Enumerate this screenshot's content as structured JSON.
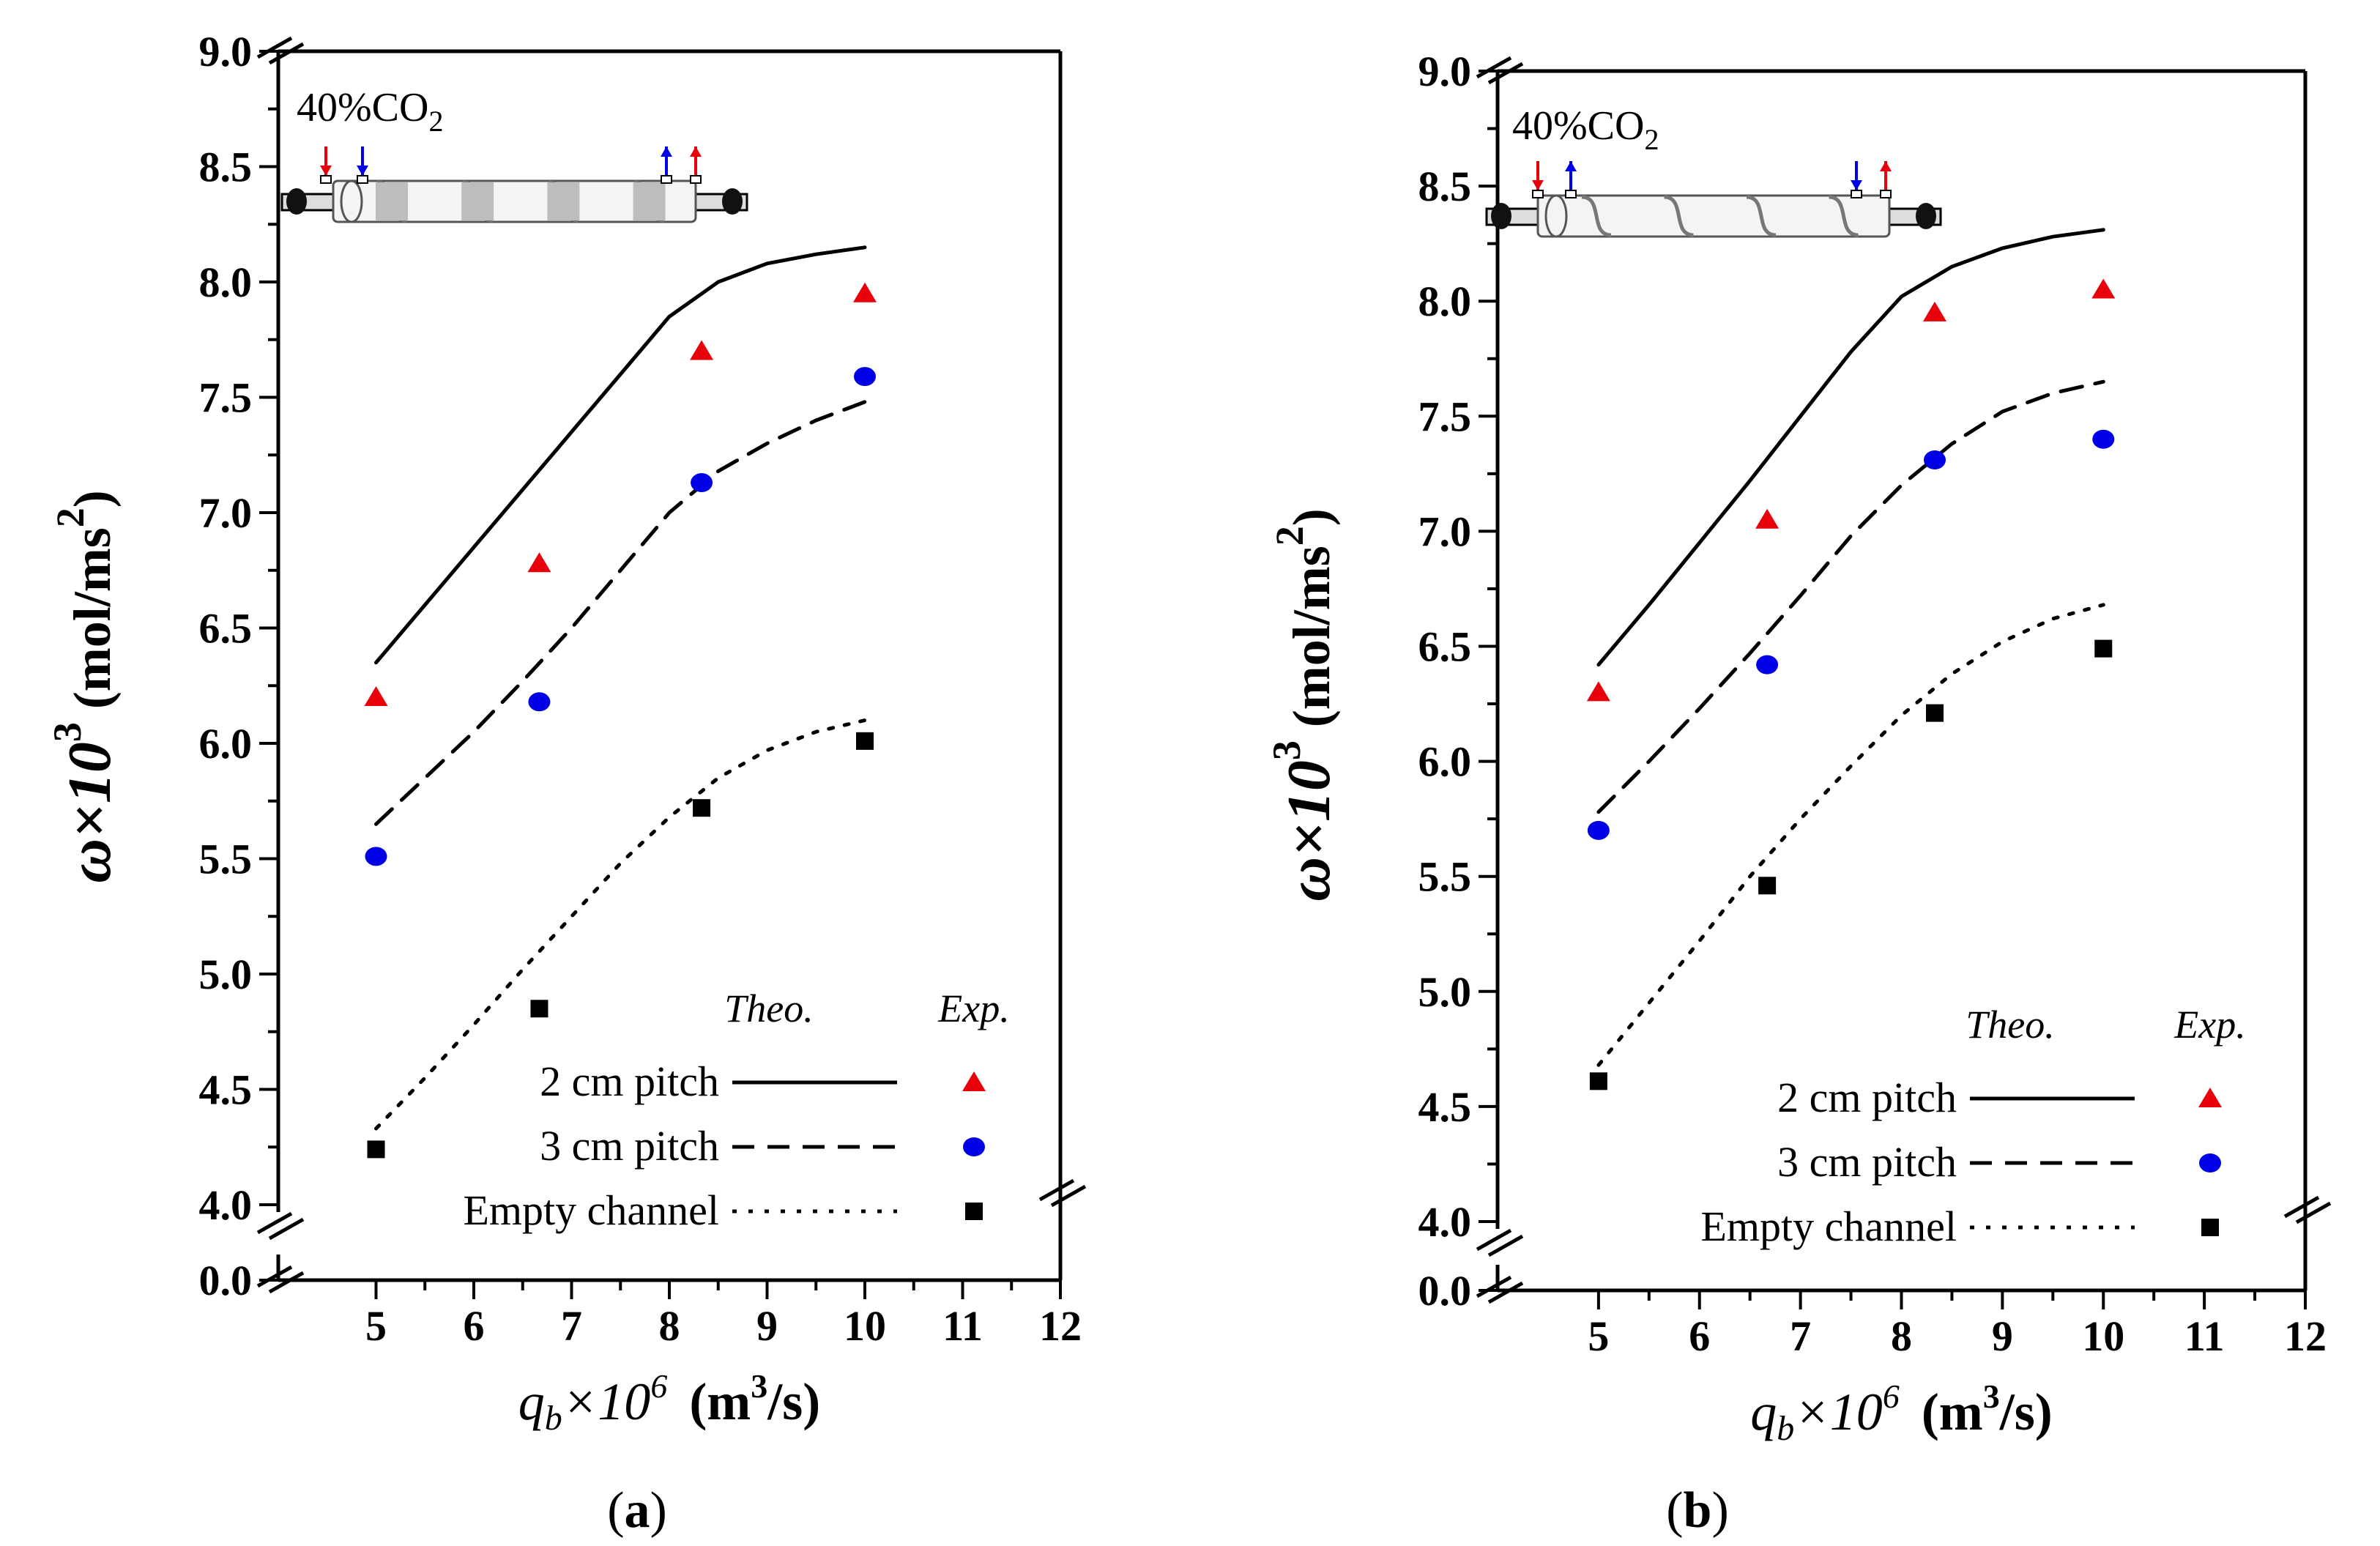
{
  "chart_data": [
    {
      "type": "line",
      "panel_label": "a",
      "gas_label": "40%CO",
      "gas_subscript": "2",
      "xlabel": {
        "var": "q",
        "sub": "b",
        "mult": "×10",
        "exp": "6",
        "units_pre": "(m",
        "units_exp": "3",
        "units_post": "/s)"
      },
      "ylabel": {
        "main": "ω×10",
        "exp": "3",
        "units_pre": " (mol/ms",
        "units_exp": "2",
        "units_post": ")"
      },
      "xlim": [
        4,
        12
      ],
      "ylim_upper": [
        4.0,
        9.0
      ],
      "y_break": [
        0.0,
        4.0
      ],
      "x_ticks": [
        "5",
        "6",
        "7",
        "8",
        "9",
        "10",
        "11",
        "12"
      ],
      "y_ticks": [
        "4.0",
        "4.5",
        "5.0",
        "5.5",
        "6.0",
        "6.5",
        "7.0",
        "7.5",
        "8.0",
        "8.5",
        "9.0"
      ],
      "y_zero_tick": "0.0",
      "legend_headers": {
        "theo": "Theo.",
        "exp": "Exp."
      },
      "series": [
        {
          "name": "2 cm pitch",
          "style": "solid",
          "marker": "triangle",
          "color": "#e8000b",
          "theo_x": [
            5,
            5.5,
            6,
            6.5,
            7,
            7.5,
            8,
            8.5,
            9,
            9.5,
            10
          ],
          "theo_y": [
            6.35,
            6.6,
            6.85,
            7.1,
            7.35,
            7.6,
            7.85,
            8.0,
            8.08,
            8.12,
            8.15
          ],
          "exp_x": [
            5,
            6.67,
            8.33,
            10
          ],
          "exp_y": [
            6.2,
            6.78,
            7.7,
            7.95
          ]
        },
        {
          "name": "3 cm pitch",
          "style": "dashed",
          "marker": "circle",
          "color": "#0000e6",
          "theo_x": [
            5,
            5.5,
            6,
            6.5,
            7,
            7.5,
            8,
            8.5,
            9,
            9.5,
            10
          ],
          "theo_y": [
            5.65,
            5.85,
            6.05,
            6.27,
            6.5,
            6.75,
            7.0,
            7.18,
            7.3,
            7.4,
            7.48
          ],
          "exp_x": [
            5,
            6.67,
            8.33,
            10
          ],
          "exp_y": [
            5.51,
            6.18,
            7.13,
            7.59
          ]
        },
        {
          "name": "Empty channel",
          "style": "dotted",
          "marker": "square",
          "color": "#000000",
          "theo_x": [
            5,
            5.5,
            6,
            6.5,
            7,
            7.5,
            8,
            8.5,
            9,
            9.5,
            10
          ],
          "theo_y": [
            4.33,
            4.55,
            4.78,
            5.02,
            5.25,
            5.48,
            5.68,
            5.85,
            5.97,
            6.05,
            6.1
          ],
          "exp_x": [
            5,
            6.67,
            8.33,
            10
          ],
          "exp_y": [
            4.24,
            4.85,
            5.72,
            6.01
          ]
        }
      ]
    },
    {
      "type": "line",
      "panel_label": "b",
      "gas_label": "40%CO",
      "gas_subscript": "2",
      "xlabel": {
        "var": "q",
        "sub": "b",
        "mult": "×10",
        "exp": "6",
        "units_pre": "(m",
        "units_exp": "3",
        "units_post": "/s)"
      },
      "ylabel": {
        "main": "ω×10",
        "exp": "3",
        "units_pre": " (mol/ms",
        "units_exp": "2",
        "units_post": ")"
      },
      "xlim": [
        4,
        12
      ],
      "ylim_upper": [
        4.0,
        9.0
      ],
      "y_break": [
        0.0,
        4.0
      ],
      "x_ticks": [
        "5",
        "6",
        "7",
        "8",
        "9",
        "10",
        "11",
        "12"
      ],
      "y_ticks": [
        "4.0",
        "4.5",
        "5.0",
        "5.5",
        "6.0",
        "6.5",
        "7.0",
        "7.5",
        "8.0",
        "8.5",
        "9.0"
      ],
      "y_zero_tick": "0.0",
      "legend_headers": {
        "theo": "Theo.",
        "exp": "Exp."
      },
      "series": [
        {
          "name": "2 cm pitch",
          "style": "solid",
          "marker": "triangle",
          "color": "#e8000b",
          "theo_x": [
            5,
            5.5,
            6,
            6.5,
            7,
            7.5,
            8,
            8.5,
            9,
            9.5,
            10
          ],
          "theo_y": [
            6.42,
            6.68,
            6.95,
            7.22,
            7.5,
            7.78,
            8.02,
            8.15,
            8.23,
            8.28,
            8.31
          ],
          "exp_x": [
            5,
            6.67,
            8.33,
            10
          ],
          "exp_y": [
            6.3,
            7.05,
            7.95,
            8.05
          ]
        },
        {
          "name": "3 cm pitch",
          "style": "dashed",
          "marker": "circle",
          "color": "#0000e6",
          "theo_x": [
            5,
            5.5,
            6,
            6.5,
            7,
            7.5,
            8,
            8.5,
            9,
            9.5,
            10
          ],
          "theo_y": [
            5.78,
            6.0,
            6.23,
            6.47,
            6.72,
            6.98,
            7.2,
            7.38,
            7.52,
            7.6,
            7.65
          ],
          "exp_x": [
            5,
            6.67,
            8.33,
            10
          ],
          "exp_y": [
            5.7,
            6.42,
            7.31,
            7.4
          ]
        },
        {
          "name": "Empty channel",
          "style": "dotted",
          "marker": "square",
          "color": "#000000",
          "theo_x": [
            5,
            5.5,
            6,
            6.5,
            7,
            7.5,
            8,
            8.5,
            9,
            9.5,
            10
          ],
          "theo_y": [
            4.68,
            4.95,
            5.22,
            5.5,
            5.75,
            5.98,
            6.2,
            6.38,
            6.52,
            6.62,
            6.68
          ],
          "exp_x": [
            5,
            6.67,
            8.33,
            10
          ],
          "exp_y": [
            4.61,
            5.46,
            6.21,
            6.49
          ]
        }
      ]
    }
  ]
}
